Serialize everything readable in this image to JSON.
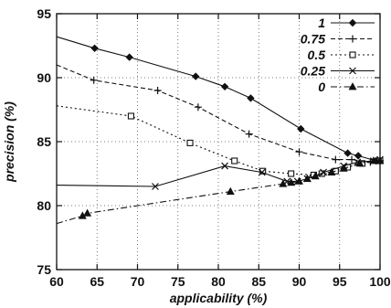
{
  "chart_data": {
    "type": "line",
    "title": "",
    "xlabel": "applicability (%)",
    "ylabel": "precision (%)",
    "xlim": [
      60,
      100
    ],
    "ylim": [
      75,
      95
    ],
    "x_ticks": [
      "60",
      "65",
      "70",
      "75",
      "80",
      "85",
      "90",
      "95",
      "100"
    ],
    "y_ticks": [
      "75",
      "80",
      "85",
      "90",
      "95"
    ],
    "grid": true,
    "legend_position": "top-right",
    "series": [
      {
        "name": "1",
        "marker": "diamond",
        "linestyle": "solid",
        "color": "#111111",
        "points": [
          [
            60,
            93.2
          ],
          [
            64.7,
            92.3
          ],
          [
            69,
            91.6
          ],
          [
            77.2,
            90.1
          ],
          [
            80.8,
            89.3
          ],
          [
            84,
            88.4
          ],
          [
            90.2,
            86.0
          ],
          [
            96,
            84.1
          ],
          [
            97.3,
            83.9
          ],
          [
            99.5,
            83.5
          ],
          [
            100,
            83.5
          ]
        ]
      },
      {
        "name": "0.75",
        "marker": "plus",
        "linestyle": "dashed",
        "color": "#111111",
        "points": [
          [
            60,
            91.0
          ],
          [
            64.6,
            89.8
          ],
          [
            72.5,
            89.0
          ],
          [
            77.5,
            87.7
          ],
          [
            83.8,
            85.6
          ],
          [
            90,
            84.2
          ],
          [
            94.5,
            83.6
          ],
          [
            96.5,
            83.6
          ],
          [
            98.8,
            83.4
          ],
          [
            100,
            83.5
          ]
        ]
      },
      {
        "name": "0.5",
        "marker": "square",
        "linestyle": "dotted",
        "color": "#111111",
        "points": [
          [
            60,
            87.8
          ],
          [
            69.2,
            87.0
          ],
          [
            76.5,
            84.9
          ],
          [
            82,
            83.5
          ],
          [
            85.5,
            82.7
          ],
          [
            89,
            82.5
          ],
          [
            91.8,
            82.4
          ],
          [
            92.8,
            82.5
          ],
          [
            94.5,
            82.7
          ],
          [
            96,
            83.0
          ],
          [
            97.8,
            83.3
          ],
          [
            100,
            83.5
          ]
        ]
      },
      {
        "name": "0.25",
        "marker": "x",
        "linestyle": "solid",
        "color": "#111111",
        "points": [
          [
            60,
            81.6
          ],
          [
            72.2,
            81.5
          ],
          [
            80.8,
            83.1
          ],
          [
            85.4,
            82.6
          ],
          [
            88.5,
            81.9
          ],
          [
            89.8,
            81.9
          ],
          [
            91,
            82.1
          ],
          [
            93,
            82.6
          ],
          [
            95.5,
            83.1
          ],
          [
            97.2,
            83.4
          ],
          [
            99.2,
            83.5
          ],
          [
            100,
            83.6
          ]
        ]
      },
      {
        "name": "0",
        "marker": "triangle",
        "linestyle": "dashdot",
        "color": "#111111",
        "points": [
          [
            60,
            78.6
          ],
          [
            63.2,
            79.2
          ],
          [
            63.8,
            79.4
          ],
          [
            81.5,
            81.1
          ],
          [
            88,
            81.7
          ],
          [
            89,
            81.8
          ],
          [
            90,
            81.9
          ],
          [
            91,
            82.1
          ],
          [
            92,
            82.3
          ],
          [
            94,
            82.6
          ],
          [
            95.5,
            82.9
          ],
          [
            97.5,
            83.3
          ],
          [
            99.2,
            83.5
          ],
          [
            100,
            83.5
          ]
        ]
      }
    ]
  }
}
